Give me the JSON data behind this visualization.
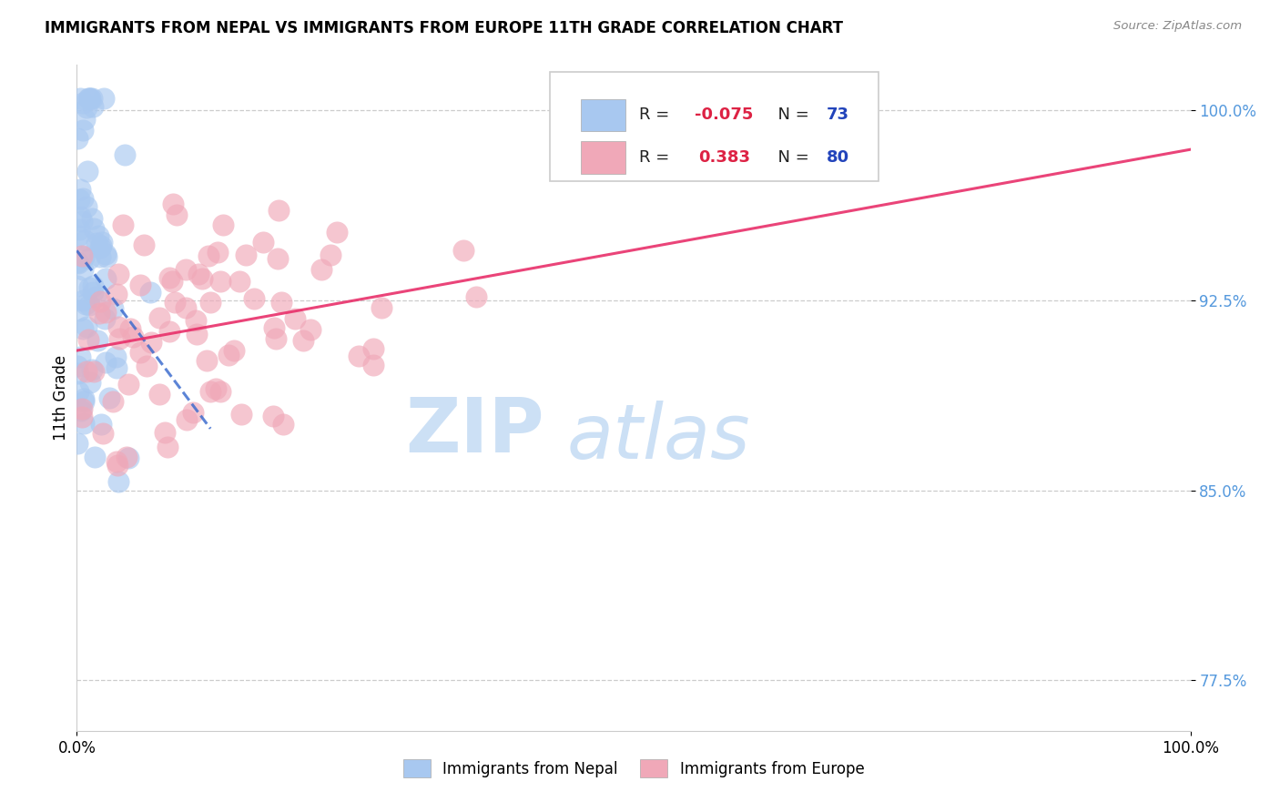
{
  "title": "IMMIGRANTS FROM NEPAL VS IMMIGRANTS FROM EUROPE 11TH GRADE CORRELATION CHART",
  "source": "Source: ZipAtlas.com",
  "ylabel": "11th Grade",
  "nepal_color": "#a8c8f0",
  "europe_color": "#f0a8b8",
  "nepal_line_color": "#3366cc",
  "europe_line_color": "#e8306a",
  "nepal_r": -0.075,
  "nepal_n": 73,
  "europe_r": 0.383,
  "europe_n": 80,
  "watermark_color": "#cce0f5",
  "nepal_seed": 10,
  "europe_seed": 20
}
